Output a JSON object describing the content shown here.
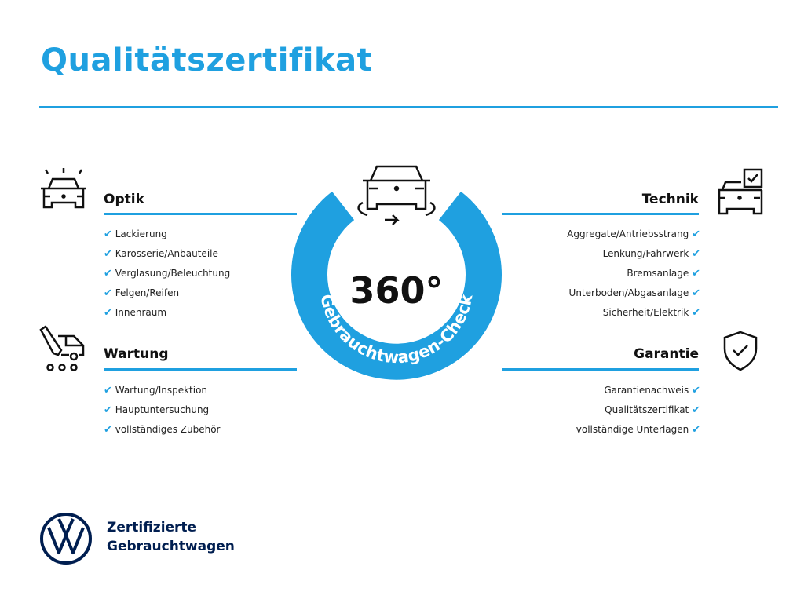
{
  "title": "Qualitätszertifikat",
  "center": {
    "number": "360°",
    "arc_text": "Gebrauchtwagen-Check"
  },
  "sections": {
    "optik": {
      "title": "Optik",
      "items": [
        "Lackierung",
        "Karosserie/Anbauteile",
        "Verglasung/Beleuchtung",
        "Felgen/Reifen",
        "Innenraum"
      ]
    },
    "wartung": {
      "title": "Wartung",
      "items": [
        "Wartung/Inspektion",
        "Hauptuntersuchung",
        "vollständiges Zubehör"
      ]
    },
    "technik": {
      "title": "Technik",
      "items": [
        "Aggregate/Antriebsstrang",
        "Lenkung/Fahrwerk",
        "Bremsanlage",
        "Unterboden/Abgasanlage",
        "Sicherheit/Elektrik"
      ]
    },
    "garantie": {
      "title": "Garantie",
      "items": [
        "Garantienachweis",
        "Qualitätszertifikat",
        "vollständige Unterlagen"
      ]
    }
  },
  "check_glyph": "✔",
  "brand": {
    "line1": "Zertifizierte",
    "line2": "Gebrauchtwagen",
    "logo_text": "VW"
  },
  "colors": {
    "accent": "#1fa0e0",
    "navy": "#001e50"
  }
}
